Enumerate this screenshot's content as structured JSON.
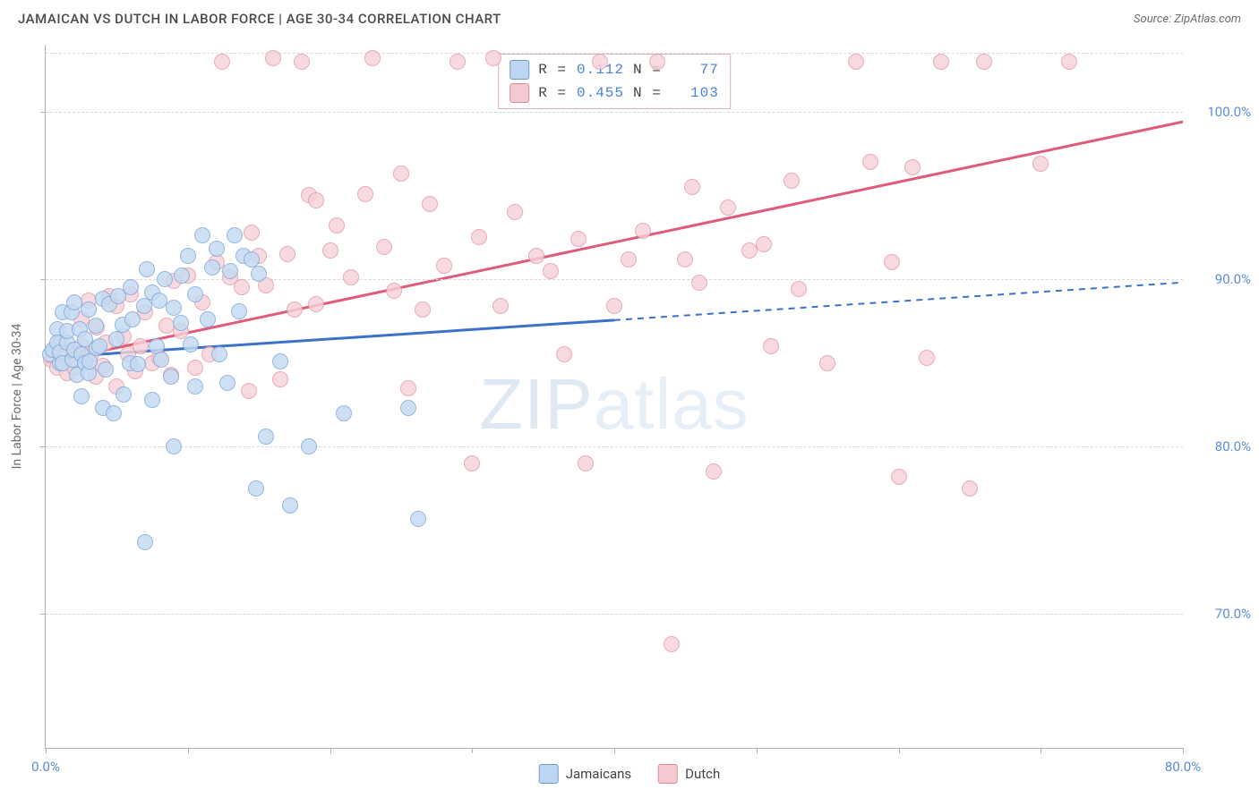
{
  "title": "JAMAICAN VS DUTCH IN LABOR FORCE | AGE 30-34 CORRELATION CHART",
  "source_label": "Source: ZipAtlas.com",
  "y_axis_label": "In Labor Force | Age 30-34",
  "watermark_a": "ZIP",
  "watermark_b": "atlas",
  "xlim": [
    0,
    80
  ],
  "ylim": [
    62,
    104
  ],
  "x_ticks": [
    0,
    10,
    20,
    30,
    40,
    50,
    60,
    70,
    80
  ],
  "x_tick_labels": {
    "0": "0.0%",
    "80": "80.0%"
  },
  "y_gridlines": [
    70,
    80,
    90,
    100,
    103.5
  ],
  "y_tick_labels": {
    "70": "70.0%",
    "80": "80.0%",
    "90": "90.0%",
    "100": "100.0%"
  },
  "series": {
    "jamaicans": {
      "label": "Jamaicans",
      "point_fill": "#c4daf2",
      "point_stroke": "#7fa8d9",
      "swatch_fill": "#bcd5f0",
      "swatch_stroke": "#6f9ad0",
      "line_color": "#3a72c9",
      "trend": {
        "x1": 0,
        "y1": 85.3,
        "x_solid_end": 40,
        "x2": 80,
        "y2": 89.8
      },
      "R": "0.112",
      "N": "77",
      "points": [
        [
          0.3,
          85.5
        ],
        [
          0.5,
          85.8
        ],
        [
          0.8,
          87.0
        ],
        [
          0.8,
          86.2
        ],
        [
          1.0,
          85.0
        ],
        [
          1.0,
          85.6
        ],
        [
          1.2,
          88.0
        ],
        [
          1.2,
          85.0
        ],
        [
          1.5,
          86.2
        ],
        [
          1.5,
          86.9
        ],
        [
          1.8,
          88.0
        ],
        [
          1.9,
          85.2
        ],
        [
          2.0,
          85.8
        ],
        [
          2.0,
          88.6
        ],
        [
          2.2,
          84.3
        ],
        [
          2.4,
          87.0
        ],
        [
          2.5,
          85.5
        ],
        [
          2.5,
          83.0
        ],
        [
          2.8,
          86.4
        ],
        [
          2.8,
          85.0
        ],
        [
          3.0,
          88.2
        ],
        [
          3.0,
          84.4
        ],
        [
          3.1,
          85.1
        ],
        [
          3.5,
          87.2
        ],
        [
          3.6,
          85.9
        ],
        [
          3.8,
          86.0
        ],
        [
          4.0,
          88.8
        ],
        [
          4.0,
          82.3
        ],
        [
          4.2,
          84.6
        ],
        [
          4.5,
          88.5
        ],
        [
          5.0,
          86.4
        ],
        [
          5.1,
          89.0
        ],
        [
          5.4,
          87.3
        ],
        [
          5.5,
          83.1
        ],
        [
          5.9,
          85.0
        ],
        [
          6.0,
          89.5
        ],
        [
          6.1,
          87.6
        ],
        [
          6.5,
          84.9
        ],
        [
          6.9,
          88.4
        ],
        [
          7.1,
          90.6
        ],
        [
          7.5,
          89.2
        ],
        [
          7.5,
          82.8
        ],
        [
          7.8,
          86.0
        ],
        [
          8.0,
          88.7
        ],
        [
          8.1,
          85.2
        ],
        [
          8.4,
          90.0
        ],
        [
          8.8,
          84.2
        ],
        [
          9.0,
          80.0
        ],
        [
          9.0,
          88.3
        ],
        [
          9.5,
          87.4
        ],
        [
          9.6,
          90.2
        ],
        [
          10.0,
          91.4
        ],
        [
          10.2,
          86.1
        ],
        [
          10.5,
          89.1
        ],
        [
          10.5,
          83.6
        ],
        [
          11.0,
          92.6
        ],
        [
          11.4,
          87.6
        ],
        [
          11.7,
          90.7
        ],
        [
          12.0,
          91.8
        ],
        [
          12.2,
          85.5
        ],
        [
          12.8,
          83.8
        ],
        [
          13.0,
          90.5
        ],
        [
          13.3,
          92.6
        ],
        [
          13.6,
          88.1
        ],
        [
          13.9,
          91.4
        ],
        [
          14.5,
          91.2
        ],
        [
          14.8,
          77.5
        ],
        [
          15.0,
          90.3
        ],
        [
          15.5,
          80.6
        ],
        [
          16.5,
          85.1
        ],
        [
          17.2,
          76.5
        ],
        [
          18.5,
          80.0
        ],
        [
          21.0,
          82.0
        ],
        [
          25.5,
          82.3
        ],
        [
          26.2,
          75.7
        ],
        [
          7.0,
          74.3
        ],
        [
          4.8,
          82.0
        ]
      ]
    },
    "dutch": {
      "label": "Dutch",
      "point_fill": "#f6d2d8",
      "point_stroke": "#e39aa6",
      "swatch_fill": "#f4c9d1",
      "swatch_stroke": "#dd8a98",
      "line_color": "#e05a7a",
      "trend": {
        "x1": 0,
        "y1": 85.0,
        "x_solid_end": 80,
        "x2": 80,
        "y2": 99.4
      },
      "R": "0.455",
      "N": "103",
      "points": [
        [
          0.4,
          85.2
        ],
        [
          0.6,
          85.8
        ],
        [
          0.8,
          84.7
        ],
        [
          1.0,
          86.2
        ],
        [
          1.2,
          85.0
        ],
        [
          1.5,
          84.4
        ],
        [
          1.8,
          85.8
        ],
        [
          2.0,
          84.7
        ],
        [
          2.5,
          86.0
        ],
        [
          2.5,
          87.6
        ],
        [
          2.8,
          85.4
        ],
        [
          3.0,
          88.7
        ],
        [
          3.2,
          85.5
        ],
        [
          3.5,
          84.2
        ],
        [
          3.6,
          87.1
        ],
        [
          4.0,
          84.8
        ],
        [
          4.2,
          86.2
        ],
        [
          4.5,
          89.0
        ],
        [
          5.0,
          83.6
        ],
        [
          5.0,
          88.4
        ],
        [
          5.5,
          86.6
        ],
        [
          5.8,
          85.5
        ],
        [
          6.0,
          89.1
        ],
        [
          6.3,
          84.5
        ],
        [
          6.7,
          86.0
        ],
        [
          7.0,
          88.0
        ],
        [
          7.5,
          85.0
        ],
        [
          8.0,
          85.3
        ],
        [
          8.5,
          87.2
        ],
        [
          8.8,
          84.3
        ],
        [
          9.0,
          89.9
        ],
        [
          9.5,
          86.9
        ],
        [
          10.0,
          90.2
        ],
        [
          10.5,
          84.7
        ],
        [
          11.0,
          88.6
        ],
        [
          11.5,
          85.5
        ],
        [
          12.0,
          91.0
        ],
        [
          12.4,
          103.0
        ],
        [
          13.0,
          90.1
        ],
        [
          13.8,
          89.5
        ],
        [
          14.3,
          83.3
        ],
        [
          14.5,
          92.8
        ],
        [
          15.0,
          91.4
        ],
        [
          15.5,
          89.6
        ],
        [
          16.0,
          103.2
        ],
        [
          16.5,
          84.0
        ],
        [
          17.0,
          91.5
        ],
        [
          17.5,
          88.2
        ],
        [
          18.0,
          103.0
        ],
        [
          18.5,
          95.0
        ],
        [
          19.0,
          88.5
        ],
        [
          19.0,
          94.7
        ],
        [
          20.0,
          91.7
        ],
        [
          20.5,
          93.2
        ],
        [
          21.5,
          90.1
        ],
        [
          22.5,
          95.1
        ],
        [
          23.0,
          103.2
        ],
        [
          23.8,
          91.9
        ],
        [
          24.5,
          89.3
        ],
        [
          25.0,
          96.3
        ],
        [
          25.5,
          83.5
        ],
        [
          26.5,
          88.2
        ],
        [
          27.0,
          94.5
        ],
        [
          28.0,
          90.8
        ],
        [
          29.0,
          103.0
        ],
        [
          30.0,
          79.0
        ],
        [
          30.5,
          92.5
        ],
        [
          31.5,
          103.2
        ],
        [
          32.0,
          88.4
        ],
        [
          33.0,
          94.0
        ],
        [
          34.5,
          91.4
        ],
        [
          35.5,
          90.5
        ],
        [
          36.5,
          85.5
        ],
        [
          37.5,
          92.4
        ],
        [
          38.0,
          79.0
        ],
        [
          39.0,
          103.0
        ],
        [
          40.0,
          88.4
        ],
        [
          41.0,
          91.2
        ],
        [
          42.0,
          92.9
        ],
        [
          43.0,
          103.0
        ],
        [
          44.0,
          68.2
        ],
        [
          45.0,
          91.2
        ],
        [
          45.5,
          95.5
        ],
        [
          46.0,
          89.8
        ],
        [
          47.0,
          78.5
        ],
        [
          48.0,
          94.3
        ],
        [
          49.5,
          91.7
        ],
        [
          50.5,
          92.1
        ],
        [
          51.0,
          86.0
        ],
        [
          52.5,
          95.9
        ],
        [
          53.0,
          89.4
        ],
        [
          55.0,
          85.0
        ],
        [
          57.0,
          103.0
        ],
        [
          58.0,
          97.0
        ],
        [
          59.5,
          91.0
        ],
        [
          60.0,
          78.2
        ],
        [
          61.0,
          96.7
        ],
        [
          62.0,
          85.3
        ],
        [
          63.0,
          103.0
        ],
        [
          65.0,
          77.5
        ],
        [
          66.0,
          103.0
        ],
        [
          70.0,
          96.9
        ],
        [
          72.0,
          103.0
        ]
      ]
    }
  },
  "legend_r_label": "R =",
  "legend_n_label": "N ="
}
